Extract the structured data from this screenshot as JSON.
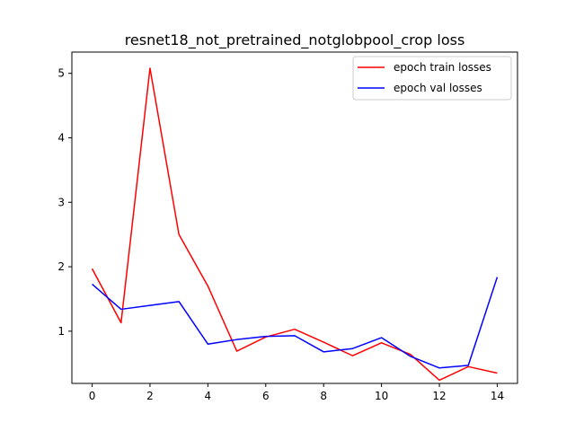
{
  "chart_data": {
    "type": "line",
    "title": "resnet18_not_pretrained_notglobpool_crop loss",
    "xlabel": "",
    "ylabel": "",
    "x": [
      0,
      1,
      2,
      3,
      4,
      5,
      6,
      7,
      8,
      9,
      10,
      11,
      12,
      13,
      14
    ],
    "xlim": [
      -0.7,
      14.7
    ],
    "ylim": [
      0.19,
      5.33
    ],
    "xticks": [
      0,
      2,
      4,
      6,
      8,
      10,
      12,
      14
    ],
    "yticks": [
      1,
      2,
      3,
      4,
      5
    ],
    "grid": false,
    "legend": "top-right",
    "series": [
      {
        "name": "epoch train losses",
        "color": "#ff0000",
        "values": [
          1.97,
          1.13,
          5.08,
          2.5,
          1.7,
          0.69,
          0.91,
          1.03,
          0.83,
          0.62,
          0.82,
          0.64,
          0.24,
          0.45,
          0.35
        ]
      },
      {
        "name": "epoch val losses",
        "color": "#0000ff",
        "values": [
          1.73,
          1.34,
          1.4,
          1.46,
          0.8,
          0.87,
          0.92,
          0.93,
          0.68,
          0.73,
          0.9,
          0.61,
          0.43,
          0.47,
          1.84
        ]
      }
    ]
  }
}
